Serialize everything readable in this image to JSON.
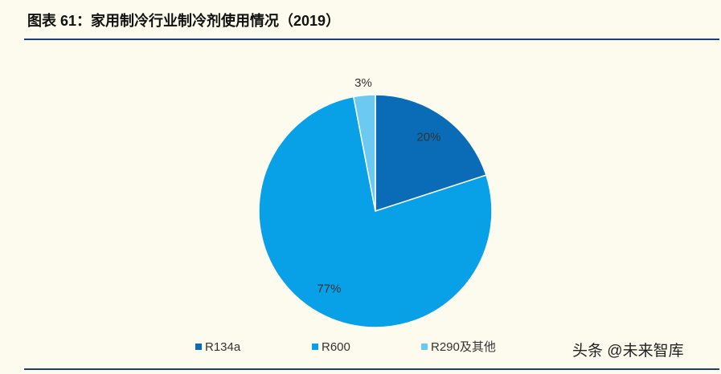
{
  "chart_data": {
    "type": "pie",
    "title": "图表 61：家用制冷行业制冷剂使用情况（2019）",
    "categories": [
      "R134a",
      "R600",
      "R290及其他"
    ],
    "values": [
      20,
      77,
      3
    ],
    "value_labels": [
      "20%",
      "77%",
      "3%"
    ],
    "colors": [
      "#0a6cb6",
      "#08a0e6",
      "#6ccaf2"
    ]
  },
  "watermark": "头条 @未来智库"
}
